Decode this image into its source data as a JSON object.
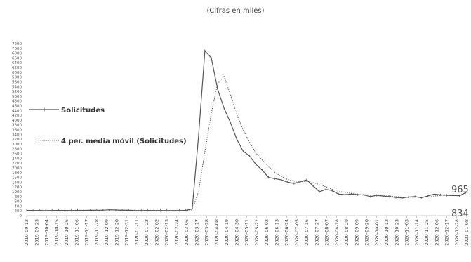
{
  "chart_data": {
    "type": "line",
    "subtitle": "(Cifras en miles)",
    "x_ticks": [
      "2019-09-12",
      "2019-09-23",
      "2019-10-04",
      "2019-10-15",
      "2019-10-26",
      "2019-11-06",
      "2019-11-17",
      "2019-11-28",
      "2019-12-09",
      "2019-12-20",
      "2019-12-31",
      "2020-01-11",
      "2020-01-22",
      "2020-02-02",
      "2020-02-13",
      "2020-02-24",
      "2020-03-06",
      "2020-03-17",
      "2020-03-28",
      "2020-04-08",
      "2020-04-19",
      "2020-04-30",
      "2020-05-11",
      "2020-05-22",
      "2020-06-02",
      "2020-06-13",
      "2020-06-24",
      "2020-07-05",
      "2020-07-16",
      "2020-07-27",
      "2020-08-07",
      "2020-08-18",
      "2020-08-29",
      "2020-09-09",
      "2020-09-20",
      "2020-10-01",
      "2020-10-12",
      "2020-10-23",
      "2020-11-03",
      "2020-11-14",
      "2020-11-25",
      "2020-12-06",
      "2020-12-17",
      "2020-12-28",
      "2021-01-08"
    ],
    "y_ticks": [
      0,
      200,
      400,
      600,
      800,
      1000,
      1200,
      1400,
      1600,
      1800,
      2000,
      2200,
      2400,
      2600,
      2800,
      3000,
      3200,
      3400,
      3600,
      3800,
      4000,
      4200,
      4400,
      4600,
      4800,
      5000,
      5200,
      5400,
      5600,
      5800,
      6000,
      6200,
      6400,
      6600,
      6800,
      7000,
      7200
    ],
    "ylim": [
      0,
      7200
    ],
    "series": [
      {
        "name": "Solicitudes",
        "style": "solid-markers",
        "color": "#555555",
        "x": [
          "2019-09-12",
          "2019-09-19",
          "2019-09-26",
          "2019-10-03",
          "2019-10-10",
          "2019-10-17",
          "2019-10-24",
          "2019-10-31",
          "2019-11-07",
          "2019-11-14",
          "2019-11-21",
          "2019-11-28",
          "2019-12-05",
          "2019-12-12",
          "2019-12-19",
          "2019-12-26",
          "2020-01-02",
          "2020-01-09",
          "2020-01-16",
          "2020-01-23",
          "2020-01-30",
          "2020-02-06",
          "2020-02-13",
          "2020-02-20",
          "2020-02-27",
          "2020-03-05",
          "2020-03-12",
          "2020-03-19",
          "2020-03-26",
          "2020-04-02",
          "2020-04-09",
          "2020-04-16",
          "2020-04-23",
          "2020-04-30",
          "2020-05-07",
          "2020-05-14",
          "2020-05-21",
          "2020-05-28",
          "2020-06-04",
          "2020-06-11",
          "2020-06-18",
          "2020-06-25",
          "2020-07-02",
          "2020-07-09",
          "2020-07-16",
          "2020-07-23",
          "2020-07-30",
          "2020-08-06",
          "2020-08-13",
          "2020-08-20",
          "2020-08-27",
          "2020-09-03",
          "2020-09-10",
          "2020-09-17",
          "2020-09-24",
          "2020-10-01",
          "2020-10-08",
          "2020-10-15",
          "2020-10-22",
          "2020-10-29",
          "2020-11-05",
          "2020-11-12",
          "2020-11-19",
          "2020-11-26",
          "2020-12-03",
          "2020-12-10",
          "2020-12-17",
          "2020-12-24",
          "2020-12-31",
          "2021-01-07"
        ],
        "values": [
          220,
          215,
          218,
          212,
          215,
          220,
          218,
          215,
          218,
          220,
          222,
          225,
          230,
          245,
          235,
          220,
          225,
          215,
          212,
          218,
          215,
          212,
          215,
          212,
          215,
          220,
          280,
          3300,
          6900,
          6600,
          5300,
          4500,
          3900,
          3200,
          2700,
          2500,
          2150,
          1900,
          1600,
          1550,
          1500,
          1400,
          1350,
          1420,
          1500,
          1250,
          1000,
          1100,
          1050,
          900,
          880,
          900,
          880,
          860,
          800,
          850,
          820,
          800,
          760,
          740,
          780,
          800,
          750,
          820,
          900,
          870,
          850,
          840,
          834,
          965
        ]
      },
      {
        "name": "4 per. media móvil (Solicitudes)",
        "style": "dotted",
        "color": "#555555",
        "x": [
          "2019-10-03",
          "2019-10-10",
          "2019-10-17",
          "2019-10-24",
          "2019-10-31",
          "2019-11-07",
          "2019-11-14",
          "2019-11-21",
          "2019-11-28",
          "2019-12-05",
          "2019-12-12",
          "2019-12-19",
          "2019-12-26",
          "2020-01-02",
          "2020-01-09",
          "2020-01-16",
          "2020-01-23",
          "2020-01-30",
          "2020-02-06",
          "2020-02-13",
          "2020-02-20",
          "2020-02-27",
          "2020-03-05",
          "2020-03-12",
          "2020-03-19",
          "2020-03-26",
          "2020-04-02",
          "2020-04-09",
          "2020-04-16",
          "2020-04-23",
          "2020-04-30",
          "2020-05-07",
          "2020-05-14",
          "2020-05-21",
          "2020-05-28",
          "2020-06-04",
          "2020-06-11",
          "2020-06-18",
          "2020-06-25",
          "2020-07-02",
          "2020-07-09",
          "2020-07-16",
          "2020-07-23",
          "2020-07-30",
          "2020-08-06",
          "2020-08-13",
          "2020-08-20",
          "2020-08-27",
          "2020-09-03",
          "2020-09-10",
          "2020-09-17",
          "2020-09-24",
          "2020-10-01",
          "2020-10-08",
          "2020-10-15",
          "2020-10-22",
          "2020-10-29",
          "2020-11-05",
          "2020-11-12",
          "2020-11-19",
          "2020-11-26",
          "2020-12-03",
          "2020-12-10",
          "2020-12-17",
          "2020-12-24",
          "2020-12-31",
          "2021-01-07"
        ],
        "values": [
          216,
          215,
          216,
          216,
          217,
          218,
          218,
          219,
          221,
          224,
          231,
          236,
          234,
          231,
          224,
          218,
          218,
          215,
          214,
          215,
          214,
          214,
          216,
          232,
          1004,
          2675,
          4270,
          5525,
          5825,
          5075,
          4225,
          3600,
          3075,
          2625,
          2325,
          2040,
          1810,
          1640,
          1510,
          1450,
          1420,
          1440,
          1400,
          1290,
          1210,
          1100,
          1010,
          980,
          930,
          890,
          880,
          860,
          850,
          840,
          820,
          795,
          780,
          770,
          770,
          770,
          790,
          820,
          840,
          860,
          870,
          845,
          872
        ]
      }
    ],
    "legend": [
      {
        "label": "Solicitudes",
        "style": "solid-markers"
      },
      {
        "label": "4 per. media móvil (Solicitudes)",
        "style": "dotted"
      }
    ],
    "legend_position": "left",
    "end_labels": [
      {
        "text": "965",
        "series": "Solicitudes"
      },
      {
        "text": "834",
        "series": "Solicitudes"
      }
    ],
    "grid": false
  }
}
